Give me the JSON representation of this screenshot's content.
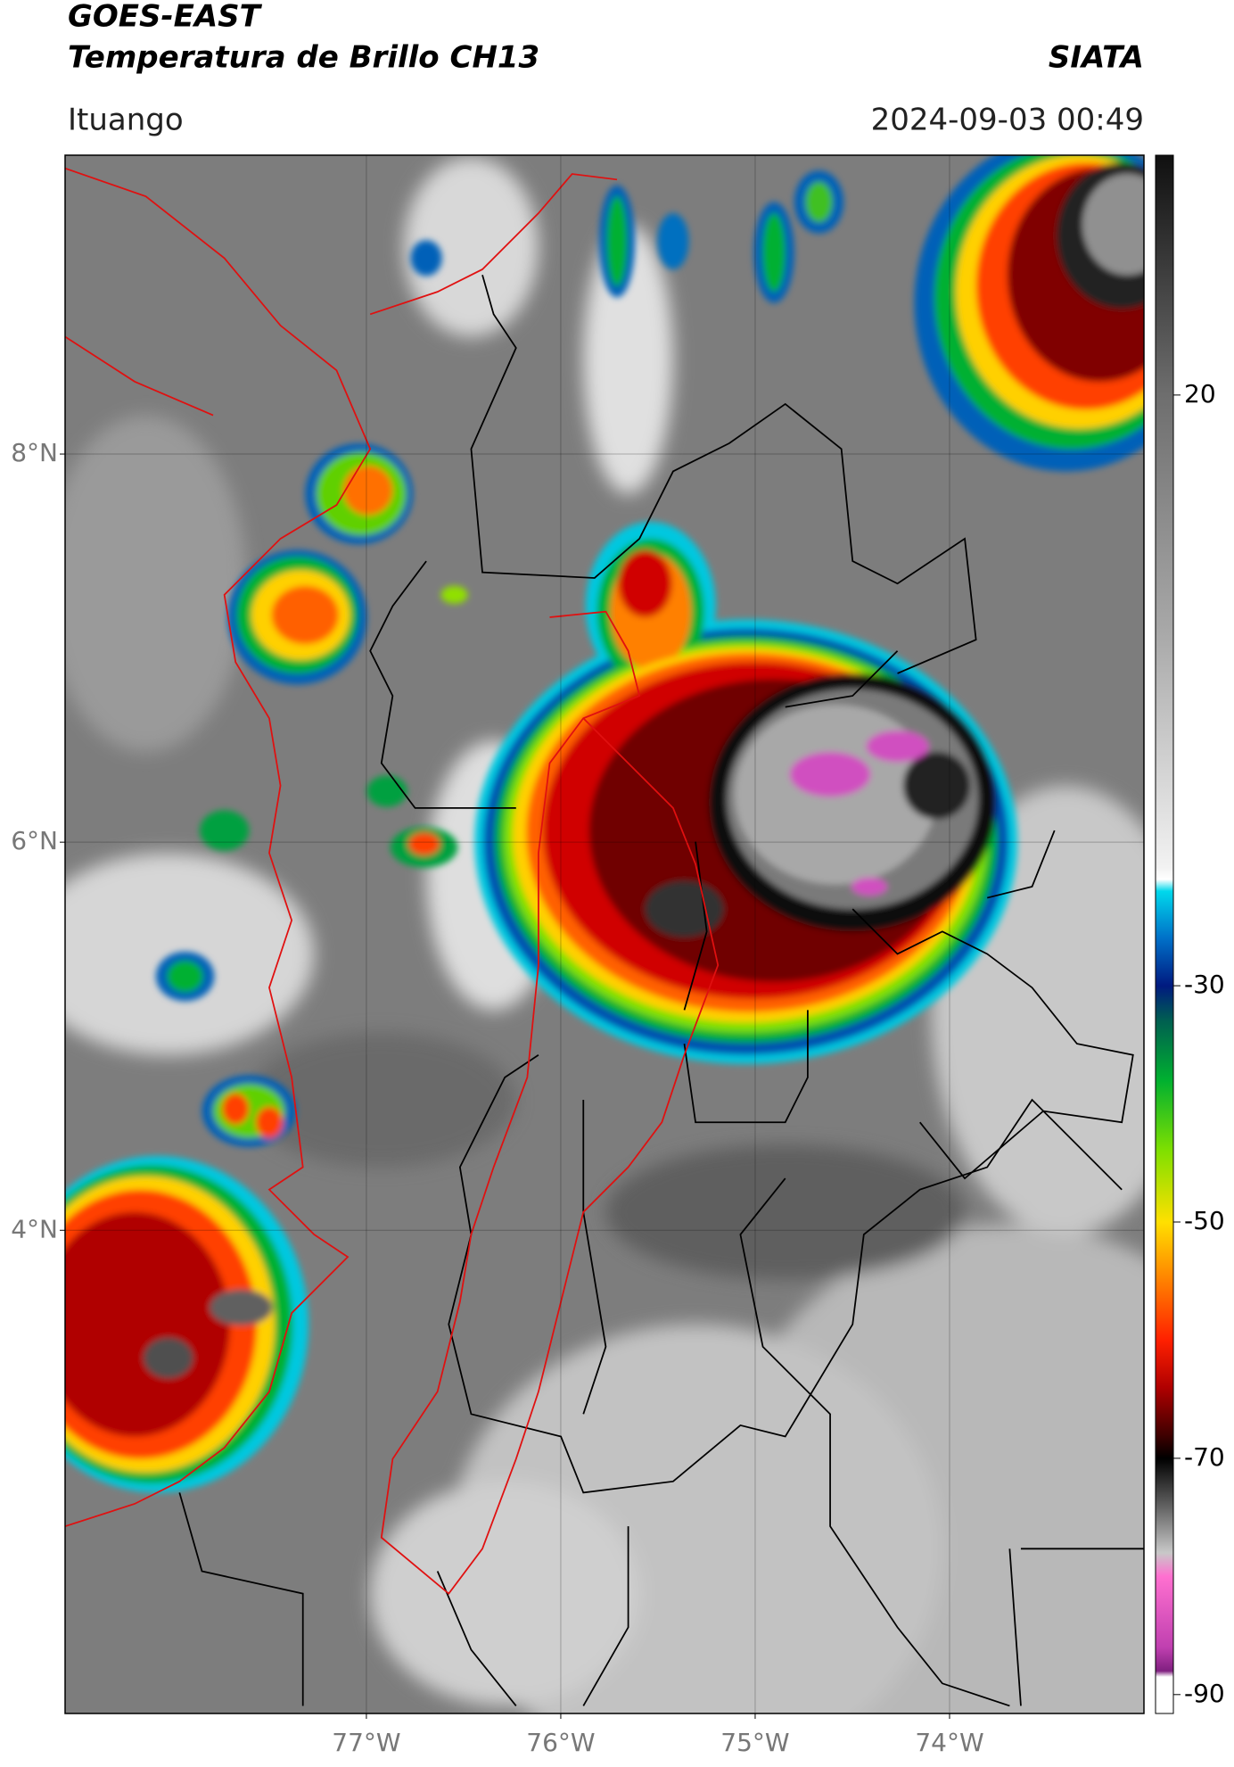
{
  "header": {
    "title": "GOES-EAST",
    "subtitle": "Temperatura de Brillo CH13",
    "brand": "SIATA",
    "location": "Ituango",
    "timestamp": "2024-09-03 00:49"
  },
  "map": {
    "lonlim": [
      -78.55,
      -73.0
    ],
    "latlim": [
      1.51,
      9.54
    ],
    "lat_ticks": [
      {
        "value": 8,
        "label": "8°N"
      },
      {
        "value": 6,
        "label": "6°N"
      },
      {
        "value": 4,
        "label": "4°N"
      }
    ],
    "lon_ticks": [
      {
        "value": -77,
        "label": "77°W"
      },
      {
        "value": -76,
        "label": "76°W"
      },
      {
        "value": -75,
        "label": "75°W"
      },
      {
        "value": -74,
        "label": "74°W"
      }
    ],
    "grid": true
  },
  "colorbar": {
    "range": [
      -91.6,
      40.3
    ],
    "ticks": [
      20,
      -30,
      -50,
      -70,
      -90
    ],
    "stops": [
      {
        "value": 40,
        "color": "#111111"
      },
      {
        "value": 20,
        "color": "#6e6e6e"
      },
      {
        "value": 0,
        "color": "#a8a8a8"
      },
      {
        "value": -20,
        "color": "#f2f2f2"
      },
      {
        "value": -21,
        "color": "#ffffff"
      },
      {
        "value": -22,
        "color": "#00d8ec"
      },
      {
        "value": -26,
        "color": "#0070c8"
      },
      {
        "value": -30,
        "color": "#001a80"
      },
      {
        "value": -33,
        "color": "#006050"
      },
      {
        "value": -38,
        "color": "#00b030"
      },
      {
        "value": -44,
        "color": "#80e000"
      },
      {
        "value": -50,
        "color": "#ffe000"
      },
      {
        "value": -55,
        "color": "#ff8000"
      },
      {
        "value": -60,
        "color": "#ff2000"
      },
      {
        "value": -64,
        "color": "#b00000"
      },
      {
        "value": -68,
        "color": "#400000"
      },
      {
        "value": -70,
        "color": "#000000"
      },
      {
        "value": -74,
        "color": "#606060"
      },
      {
        "value": -78,
        "color": "#c8c8c8"
      },
      {
        "value": -80,
        "color": "#ff70d0"
      },
      {
        "value": -86,
        "color": "#c040b0"
      },
      {
        "value": -88,
        "color": "#802080"
      },
      {
        "value": -88.5,
        "color": "#ffffff"
      }
    ]
  }
}
